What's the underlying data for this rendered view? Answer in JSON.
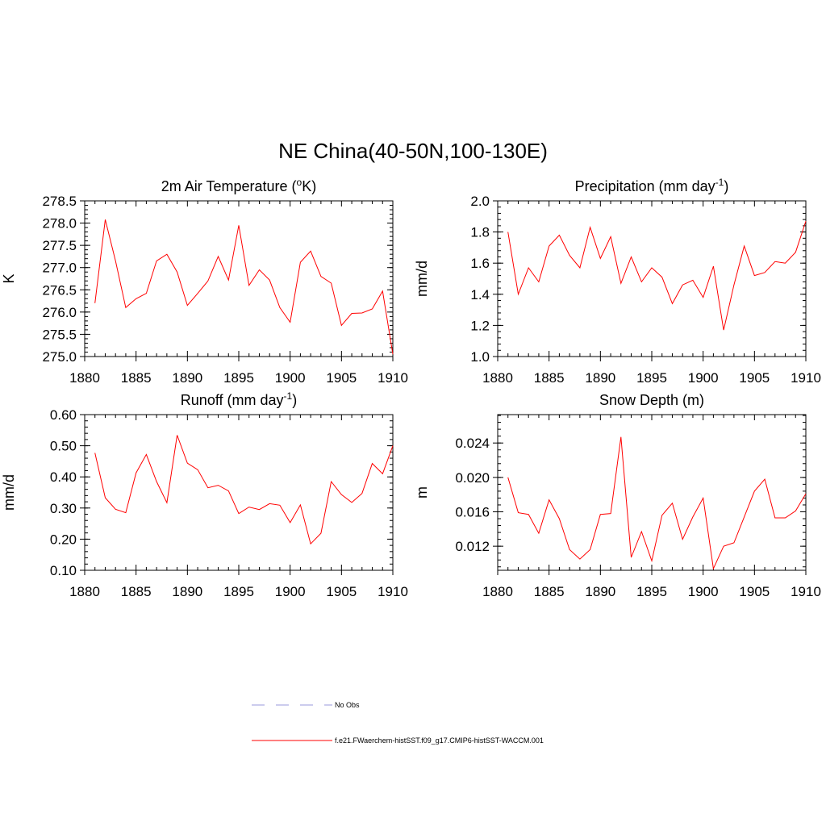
{
  "figure": {
    "title": "NE China(40-50N,100-130E)"
  },
  "legend": {
    "entries": [
      {
        "label": "No Obs",
        "color": "#9999dd",
        "style": "dashed"
      },
      {
        "label": "f.e21.FWaerchem-histSST.f09_g17.CMIP6-histSST-WACCM.001",
        "color": "#ff0000",
        "style": "solid"
      }
    ]
  },
  "chart_data": [
    {
      "type": "line",
      "title": "2m Air Temperature (",
      "title_sup_pre": "o",
      "title_after": "K)",
      "ylabel": "K",
      "xlim": [
        1880,
        1910
      ],
      "ylim": [
        275.0,
        278.5
      ],
      "xticks": [
        1880,
        1885,
        1890,
        1895,
        1900,
        1905,
        1910
      ],
      "yticks": [
        "275.0",
        "275.5",
        "276.0",
        "276.5",
        "277.0",
        "277.5",
        "278.0",
        "278.5"
      ],
      "ytick_values": [
        275.0,
        275.5,
        276.0,
        276.5,
        277.0,
        277.5,
        278.0,
        278.5
      ],
      "series": [
        {
          "color": "#ff0000",
          "x": [
            1881,
            1882,
            1883,
            1884,
            1885,
            1886,
            1887,
            1888,
            1889,
            1890,
            1891,
            1892,
            1893,
            1894,
            1895,
            1896,
            1897,
            1898,
            1899,
            1900,
            1901,
            1902,
            1903,
            1904,
            1905,
            1906,
            1907,
            1908,
            1909,
            1910
          ],
          "values": [
            276.2,
            278.08,
            277.15,
            276.1,
            276.3,
            276.42,
            277.15,
            277.3,
            276.9,
            276.15,
            276.42,
            276.7,
            277.25,
            276.72,
            277.95,
            276.6,
            276.95,
            276.72,
            276.1,
            275.77,
            277.12,
            277.37,
            276.8,
            276.65,
            275.7,
            275.97,
            275.98,
            276.07,
            276.47,
            275.05
          ]
        }
      ]
    },
    {
      "type": "line",
      "title": "Precipitation (mm day",
      "title_sup": "-1",
      "title_after": ")",
      "ylabel": "mm/d",
      "xlim": [
        1880,
        1910
      ],
      "ylim": [
        1.0,
        2.0
      ],
      "xticks": [
        1880,
        1885,
        1890,
        1895,
        1900,
        1905,
        1910
      ],
      "yticks": [
        "1.0",
        "1.2",
        "1.4",
        "1.6",
        "1.8",
        "2.0"
      ],
      "ytick_values": [
        1.0,
        1.2,
        1.4,
        1.6,
        1.8,
        2.0
      ],
      "series": [
        {
          "color": "#ff0000",
          "x": [
            1881,
            1882,
            1883,
            1884,
            1885,
            1886,
            1887,
            1888,
            1889,
            1890,
            1891,
            1892,
            1893,
            1894,
            1895,
            1896,
            1897,
            1898,
            1899,
            1900,
            1901,
            1902,
            1903,
            1904,
            1905,
            1906,
            1907,
            1908,
            1909,
            1910
          ],
          "values": [
            1.8,
            1.4,
            1.57,
            1.48,
            1.71,
            1.78,
            1.65,
            1.57,
            1.83,
            1.63,
            1.77,
            1.47,
            1.64,
            1.48,
            1.57,
            1.51,
            1.34,
            1.46,
            1.49,
            1.38,
            1.58,
            1.17,
            1.46,
            1.71,
            1.52,
            1.54,
            1.61,
            1.6,
            1.67,
            1.87
          ]
        }
      ]
    },
    {
      "type": "line",
      "title": "Runoff (mm day",
      "title_sup": "-1",
      "title_after": ")",
      "ylabel": "mm/d",
      "xlim": [
        1880,
        1910
      ],
      "ylim": [
        0.1,
        0.6
      ],
      "xticks": [
        1880,
        1885,
        1890,
        1895,
        1900,
        1905,
        1910
      ],
      "yticks": [
        "0.10",
        "0.20",
        "0.30",
        "0.40",
        "0.50",
        "0.60"
      ],
      "ytick_values": [
        0.1,
        0.2,
        0.3,
        0.4,
        0.5,
        0.6
      ],
      "series": [
        {
          "color": "#ff0000",
          "x": [
            1881,
            1882,
            1883,
            1884,
            1885,
            1886,
            1887,
            1888,
            1889,
            1890,
            1891,
            1892,
            1893,
            1894,
            1895,
            1896,
            1897,
            1898,
            1899,
            1900,
            1901,
            1902,
            1903,
            1904,
            1905,
            1906,
            1907,
            1908,
            1909,
            1910
          ],
          "values": [
            0.477,
            0.333,
            0.296,
            0.285,
            0.413,
            0.472,
            0.385,
            0.317,
            0.534,
            0.444,
            0.423,
            0.365,
            0.373,
            0.355,
            0.282,
            0.303,
            0.295,
            0.314,
            0.309,
            0.253,
            0.31,
            0.185,
            0.219,
            0.385,
            0.343,
            0.318,
            0.347,
            0.443,
            0.41,
            0.5
          ]
        }
      ]
    },
    {
      "type": "line",
      "title": "Snow Depth (m)",
      "ylabel": "m",
      "xlim": [
        1880,
        1910
      ],
      "ylim": [
        0.0092,
        0.0273
      ],
      "xticks": [
        1880,
        1885,
        1890,
        1895,
        1900,
        1905,
        1910
      ],
      "yticks": [
        "0.012",
        "0.016",
        "0.020",
        "0.024"
      ],
      "ytick_values": [
        0.012,
        0.016,
        0.02,
        0.024
      ],
      "series": [
        {
          "color": "#ff0000",
          "x": [
            1881,
            1882,
            1883,
            1884,
            1885,
            1886,
            1887,
            1888,
            1889,
            1890,
            1891,
            1892,
            1893,
            1894,
            1895,
            1896,
            1897,
            1898,
            1899,
            1900,
            1901,
            1902,
            1903,
            1904,
            1905,
            1906,
            1907,
            1908,
            1909,
            1910
          ],
          "values": [
            0.02,
            0.0159,
            0.0157,
            0.0135,
            0.0174,
            0.0152,
            0.0116,
            0.0105,
            0.0116,
            0.0157,
            0.0158,
            0.0247,
            0.0107,
            0.0137,
            0.0103,
            0.0156,
            0.017,
            0.0128,
            0.0154,
            0.0176,
            0.0094,
            0.012,
            0.0124,
            0.0154,
            0.0184,
            0.0198,
            0.0153,
            0.0153,
            0.0161,
            0.0181
          ]
        }
      ]
    }
  ]
}
